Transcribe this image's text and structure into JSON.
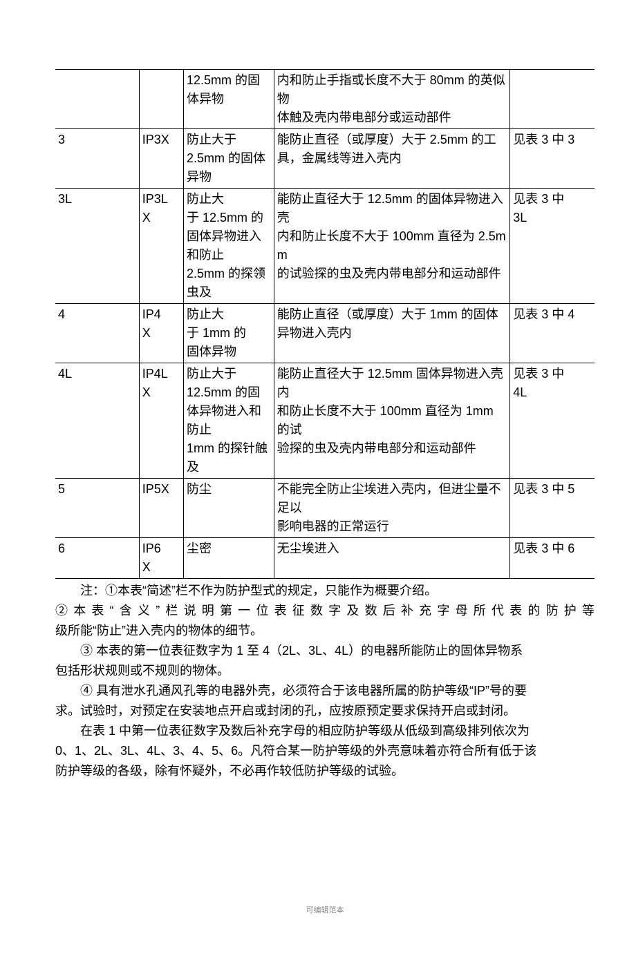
{
  "table": {
    "rows": [
      {
        "c1": "",
        "c2": "",
        "c3": "12.5mm 的固\n体异物",
        "c4": "内和防止手指或长度不大于 80mm 的英似物\n体触及壳内带电部分或运动部件",
        "c5": ""
      },
      {
        "c1": "3",
        "c2": "IP3X",
        "c3": "防止大于\n2.5mm 的固体异物",
        "c4": "能防止直径（或厚度）大于 2.5mm 的工具，金属线等进入壳内",
        "c5": "见表 3 中 3"
      },
      {
        "c1": "3L",
        "c2": "IP3L\nX",
        "c3": "防止大\n 于 12.5mm 的固体异物进入和防止\n 2.5mm 的探领虫及",
        "c4": "能防止直径大于 12.5mm 的固体异物进入壳\n内和防止长度不大于 100mm 直径为 2.5mm\n的试验探的虫及壳内带电部分和运动部件",
        "c5": "见表 3 中\n3L"
      },
      {
        "c1": "4",
        "c2": "IP4\nX",
        "c3": "防止大\n于 1mm 的\n固体异物",
        "c4": "能防止直径（或厚度）大于 1mm 的固体异物进入壳内",
        "c5": "见表 3 中 4"
      },
      {
        "c1": "4L",
        "c2": "IP4L\nX",
        "c3": "防止大于\n 12.5mm 的固体异物进入和防止\n 1mm 的探针触及",
        "c4": "能防止直径大于 12.5mm 固体异物进入壳内\n和防止长度不大于 100mm 直径为 1mm 的试\n验探的虫及壳内带电部分和运动部件",
        "c5": "见表 3 中\n4L"
      },
      {
        "c1": "5",
        "c2": "IP5X",
        "c3": "防尘",
        "c4": "不能完全防止尘埃进入壳内，但进尘量不足以\n影响电器的正常运行",
        "c5": "见表 3 中 5"
      },
      {
        "c1": "6",
        "c2": "IP6\nX",
        "c3": "尘密",
        "c4": "无尘埃进入",
        "c5": "见表 3 中 6"
      }
    ]
  },
  "notes": {
    "n1": "注：①本表“简述”栏不作为防护型式的规定，只能作为概要介绍。",
    "n2a": "②本表“含义”栏说明第一位表征数字及数后补充字母所代表的防护等",
    "n2b": "级所能“防止”进入壳内的物体的细节。",
    "n3a": "③ 本表的第一位表征数字为 1 至 4（2L、3L、4L）的电器所能防止的固体异物系",
    "n3b": "包括形状规则或不规则的物体。",
    "n4a": "④ 具有泄水孔通风孔等的电器外壳，必须符合于该电器所属的防护等级“IP”号的要",
    "n4b": "求。试验时，对预定在安装地点开启或封闭的孔，应按原预定要求保持开启或封闭。",
    "n5a": "在表 1 中第一位表征数字及数后补充字母的相应防护等级从低级到高级排列依次为",
    "n5b": "0、1、2L、3L、4L、3、4、5、6。凡符合某一防护等级的外壳意味着亦符合所有低于该",
    "n5c": "防护等级的各级，除有怀疑外，不必再作较低防护等级的试验。"
  },
  "footer": "可编辑范本"
}
